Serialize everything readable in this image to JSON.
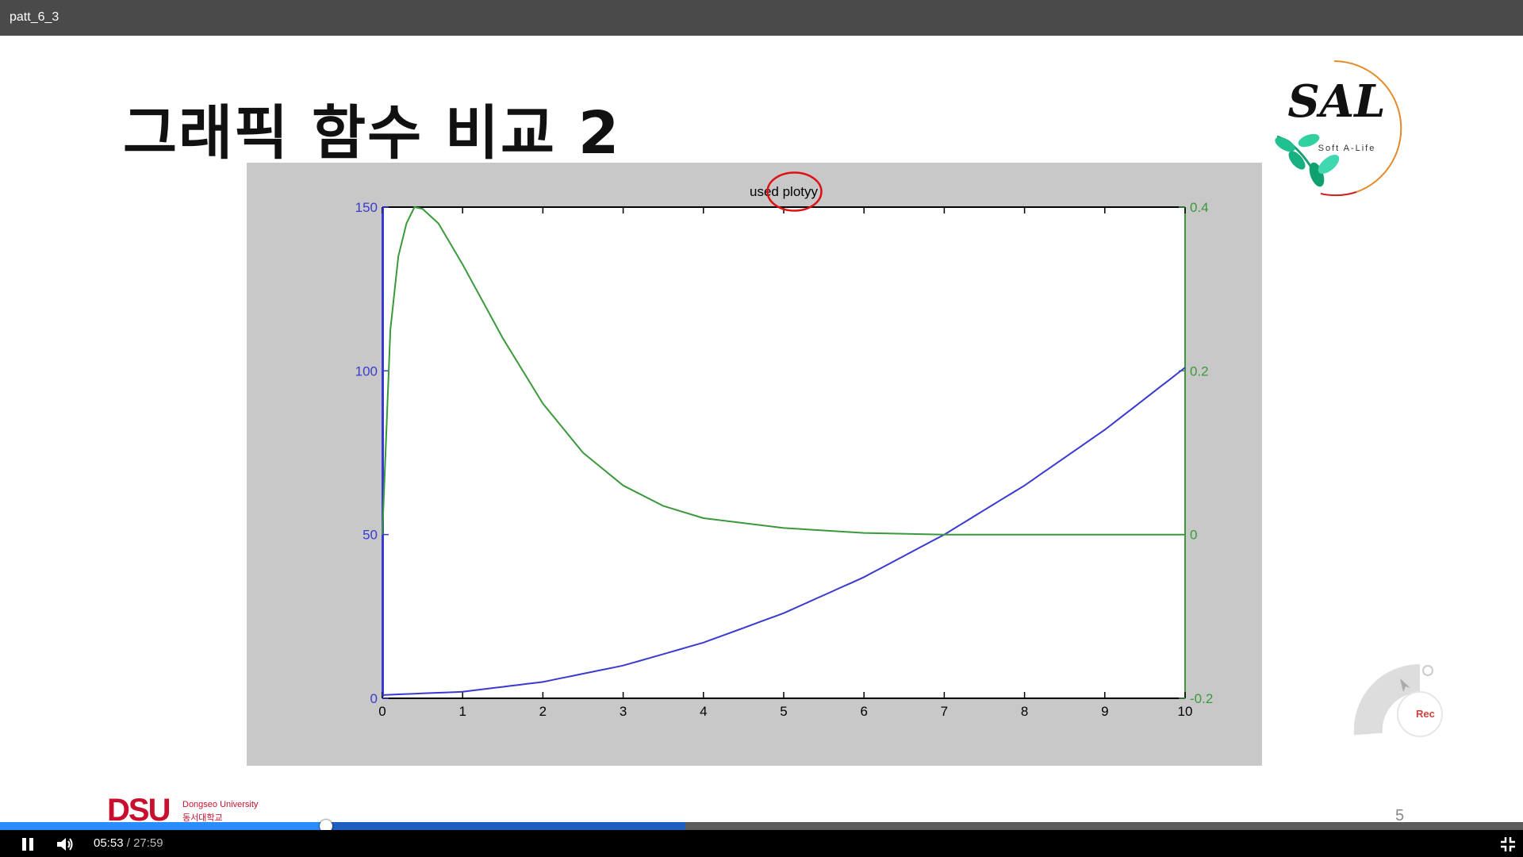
{
  "window": {
    "title": "patt_6_3"
  },
  "slide": {
    "title": "그래픽 함수 비교 2",
    "page_number": "5"
  },
  "branding": {
    "logo_text": "SAL",
    "logo_subtext": "Soft A-Life",
    "university_mark": "DSU",
    "university_name_en": "Dongseo University",
    "university_name_kr": "동서대학교"
  },
  "chart_data": {
    "type": "line",
    "title": "used plotyy",
    "x_ticks": [
      "0",
      "1",
      "2",
      "3",
      "4",
      "5",
      "6",
      "7",
      "8",
      "9",
      "10"
    ],
    "y_left_ticks": [
      "0",
      "50",
      "100",
      "150"
    ],
    "y_right_ticks": [
      "-0.2",
      "0",
      "0.2",
      "0.4"
    ],
    "xlim": [
      0,
      10
    ],
    "ylim_left": [
      0,
      150
    ],
    "ylim_right": [
      -0.2,
      0.4
    ],
    "series": [
      {
        "axis": "left",
        "color": "#3a3ad0",
        "x": [
          0,
          1,
          2,
          3,
          4,
          5,
          6,
          7,
          8,
          9,
          10
        ],
        "y": [
          1,
          2,
          5,
          10,
          17,
          26,
          37,
          50,
          65,
          82,
          101
        ]
      },
      {
        "axis": "right",
        "color": "#3a9a3a",
        "x": [
          0,
          0.1,
          0.2,
          0.3,
          0.4,
          0.5,
          0.7,
          1,
          1.5,
          2,
          2.5,
          3,
          3.5,
          4,
          5,
          6,
          7,
          8,
          10
        ],
        "y": [
          0,
          0.25,
          0.34,
          0.38,
          0.4,
          0.398,
          0.38,
          0.33,
          0.24,
          0.16,
          0.1,
          0.06,
          0.035,
          0.02,
          0.008,
          0.002,
          0,
          0,
          0
        ]
      }
    ],
    "annotation": {
      "type": "red-circle",
      "target": "title-word-plotyy"
    }
  },
  "player": {
    "current_time": "05:53",
    "separator": " / ",
    "total_time": "27:59",
    "played_fraction": 0.2143,
    "buffered_fraction": 0.45,
    "rec_label": "Rec"
  },
  "colors": {
    "topbar": "#4a4a4a",
    "accent": "#2a8cff",
    "brand": "#c8102e"
  }
}
